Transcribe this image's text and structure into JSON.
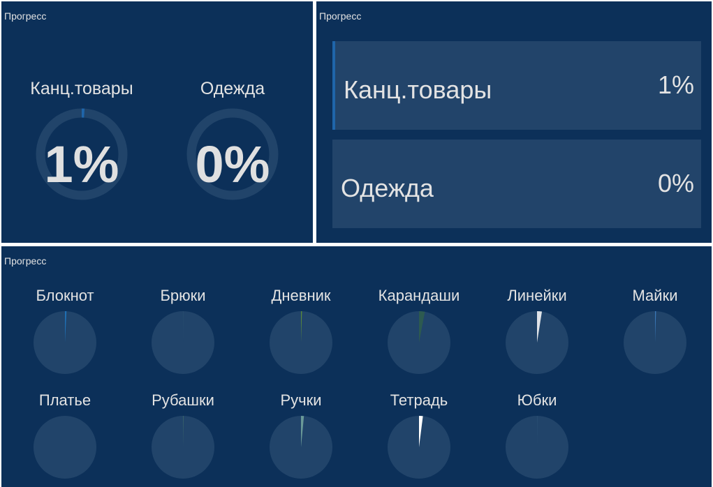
{
  "panels": {
    "gauges": {
      "title": "Прогресс",
      "items": [
        {
          "label": "Канц.товары",
          "value_text": "1%",
          "fraction": 0.01
        },
        {
          "label": "Одежда",
          "value_text": "0%",
          "fraction": 0.0
        }
      ],
      "track_color": "#21446a",
      "fill_color": "#1f65aa"
    },
    "bars": {
      "title": "Прогресс",
      "items": [
        {
          "label": "Канц.товары",
          "value_text": "1%"
        },
        {
          "label": "Одежда",
          "value_text": "0%"
        }
      ],
      "accent_color": "#1f65aa"
    },
    "pies": {
      "title": "Прогресс",
      "track_color": "#21446a",
      "items": [
        {
          "label": "Блокнот",
          "fraction": 0.008,
          "color": "#1f6fb4"
        },
        {
          "label": "Брюки",
          "fraction": 0.002,
          "color": "#2a5070"
        },
        {
          "label": "Дневник",
          "fraction": 0.005,
          "color": "#5a8a3a"
        },
        {
          "label": "Карандаши",
          "fraction": 0.03,
          "color": "#2d5a50"
        },
        {
          "label": "Линейки",
          "fraction": 0.025,
          "color": "#dfe3e8"
        },
        {
          "label": "Майки",
          "fraction": 0.005,
          "color": "#3a78b8"
        },
        {
          "label": "Платье",
          "fraction": 0.0,
          "color": "#2a4a6a"
        },
        {
          "label": "Рубашки",
          "fraction": 0.002,
          "color": "#4a7a6a"
        },
        {
          "label": "Ручки",
          "fraction": 0.015,
          "color": "#6a9a98"
        },
        {
          "label": "Тетрадь",
          "fraction": 0.02,
          "color": "#ffffff"
        },
        {
          "label": "Юбки",
          "fraction": 0.002,
          "color": "#2e5478"
        }
      ]
    }
  }
}
